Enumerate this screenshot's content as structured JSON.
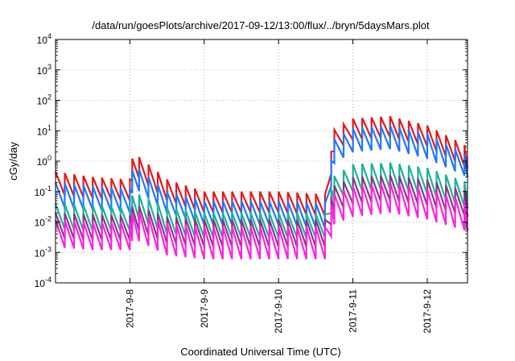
{
  "chart_data": {
    "type": "line",
    "title": "/data/run/goesPlots/archive/2017-09-12/13:00/flux/../bryn/5daysMars.plot",
    "xlabel": "Coordinated Universal Time (UTC)",
    "ylabel": "cGy/day",
    "x_scale": "time",
    "y_scale": "log",
    "xlim": [
      "2017-09-07 00:00",
      "2017-09-12 13:00"
    ],
    "ylim": [
      0.0001,
      10000
    ],
    "x_ticks": [
      "2017-9-8",
      "2017-9-9",
      "2017-9-10",
      "2017-9-11",
      "2017-9-12"
    ],
    "y_ticks": [
      {
        "base": "10",
        "exp": "-4"
      },
      {
        "base": "10",
        "exp": "-3"
      },
      {
        "base": "10",
        "exp": "-2"
      },
      {
        "base": "10",
        "exp": "-1"
      },
      {
        "base": "10",
        "exp": "0"
      },
      {
        "base": "10",
        "exp": "1"
      },
      {
        "base": "10",
        "exp": "2"
      },
      {
        "base": "10",
        "exp": "3"
      },
      {
        "base": "10",
        "exp": "4"
      }
    ],
    "grid": true,
    "legend": "none",
    "shape": "sawtooth",
    "cycle_hours": 3,
    "series": [
      {
        "color": "#e41a1c",
        "x": [
          "2017-09-07 00:00",
          "2017-09-07 12:00",
          "2017-09-08 00:00",
          "2017-09-08 01:00",
          "2017-09-08 12:00",
          "2017-09-09 00:00",
          "2017-09-10 00:00",
          "2017-09-10 16:00",
          "2017-09-10 17:30",
          "2017-09-11 00:00",
          "2017-09-11 12:00",
          "2017-09-12 00:00",
          "2017-09-12 13:00"
        ],
        "peak": [
          0.45,
          0.3,
          0.25,
          2.0,
          0.25,
          0.1,
          0.1,
          0.08,
          10,
          25,
          30,
          15,
          3
        ],
        "trough": [
          0.08,
          0.06,
          0.05,
          0.4,
          0.05,
          0.02,
          0.02,
          0.015,
          2,
          5,
          6,
          3,
          0.6
        ]
      },
      {
        "color": "#1f77ff",
        "x": [
          "2017-09-07 00:00",
          "2017-09-07 12:00",
          "2017-09-08 00:00",
          "2017-09-08 01:00",
          "2017-09-08 12:00",
          "2017-09-09 00:00",
          "2017-09-10 00:00",
          "2017-09-10 16:00",
          "2017-09-10 17:30",
          "2017-09-11 00:00",
          "2017-09-11 12:00",
          "2017-09-12 00:00",
          "2017-09-12 13:00"
        ],
        "peak": [
          0.2,
          0.15,
          0.12,
          0.8,
          0.1,
          0.05,
          0.05,
          0.04,
          5,
          12,
          15,
          8,
          1.5
        ],
        "trough": [
          0.03,
          0.025,
          0.02,
          0.15,
          0.02,
          0.008,
          0.008,
          0.006,
          0.8,
          2,
          2.5,
          1.2,
          0.3
        ]
      },
      {
        "color": "#1bb39b",
        "x": [
          "2017-09-07 00:00",
          "2017-09-07 12:00",
          "2017-09-08 00:00",
          "2017-09-08 01:00",
          "2017-09-08 12:00",
          "2017-09-09 00:00",
          "2017-09-10 00:00",
          "2017-09-10 16:00",
          "2017-09-10 17:30",
          "2017-09-11 00:00",
          "2017-09-11 12:00",
          "2017-09-12 00:00",
          "2017-09-12 13:00"
        ],
        "peak": [
          0.04,
          0.035,
          0.03,
          0.1,
          0.03,
          0.02,
          0.02,
          0.018,
          0.3,
          0.8,
          0.9,
          0.6,
          0.2
        ],
        "trough": [
          0.006,
          0.005,
          0.005,
          0.015,
          0.004,
          0.003,
          0.003,
          0.003,
          0.05,
          0.1,
          0.12,
          0.08,
          0.03
        ]
      },
      {
        "color": "#7f3f7f",
        "x": [
          "2017-09-07 00:00",
          "2017-09-07 12:00",
          "2017-09-08 00:00",
          "2017-09-08 01:00",
          "2017-09-08 12:00",
          "2017-09-09 00:00",
          "2017-09-10 00:00",
          "2017-09-10 16:00",
          "2017-09-10 17:30",
          "2017-09-11 00:00",
          "2017-09-11 12:00",
          "2017-09-12 00:00",
          "2017-09-12 13:00"
        ],
        "peak": [
          0.02,
          0.018,
          0.016,
          0.04,
          0.015,
          0.012,
          0.012,
          0.012,
          0.15,
          0.3,
          0.35,
          0.25,
          0.1
        ],
        "trough": [
          0.003,
          0.0025,
          0.0025,
          0.006,
          0.002,
          0.0015,
          0.0015,
          0.0015,
          0.02,
          0.04,
          0.05,
          0.035,
          0.015
        ]
      },
      {
        "color": "#ff22dd",
        "x": [
          "2017-09-07 00:00",
          "2017-09-07 12:00",
          "2017-09-08 00:00",
          "2017-09-08 01:00",
          "2017-09-08 12:00",
          "2017-09-09 00:00",
          "2017-09-10 00:00",
          "2017-09-10 16:00",
          "2017-09-10 17:30",
          "2017-09-11 00:00",
          "2017-09-11 12:00",
          "2017-09-12 00:00",
          "2017-09-12 13:00"
        ],
        "peak": [
          0.012,
          0.01,
          0.01,
          0.025,
          0.009,
          0.007,
          0.007,
          0.007,
          0.08,
          0.15,
          0.2,
          0.12,
          0.05
        ],
        "trough": [
          0.0015,
          0.0012,
          0.0012,
          0.003,
          0.0008,
          0.0006,
          0.0006,
          0.0006,
          0.008,
          0.015,
          0.02,
          0.012,
          0.005
        ]
      }
    ]
  }
}
